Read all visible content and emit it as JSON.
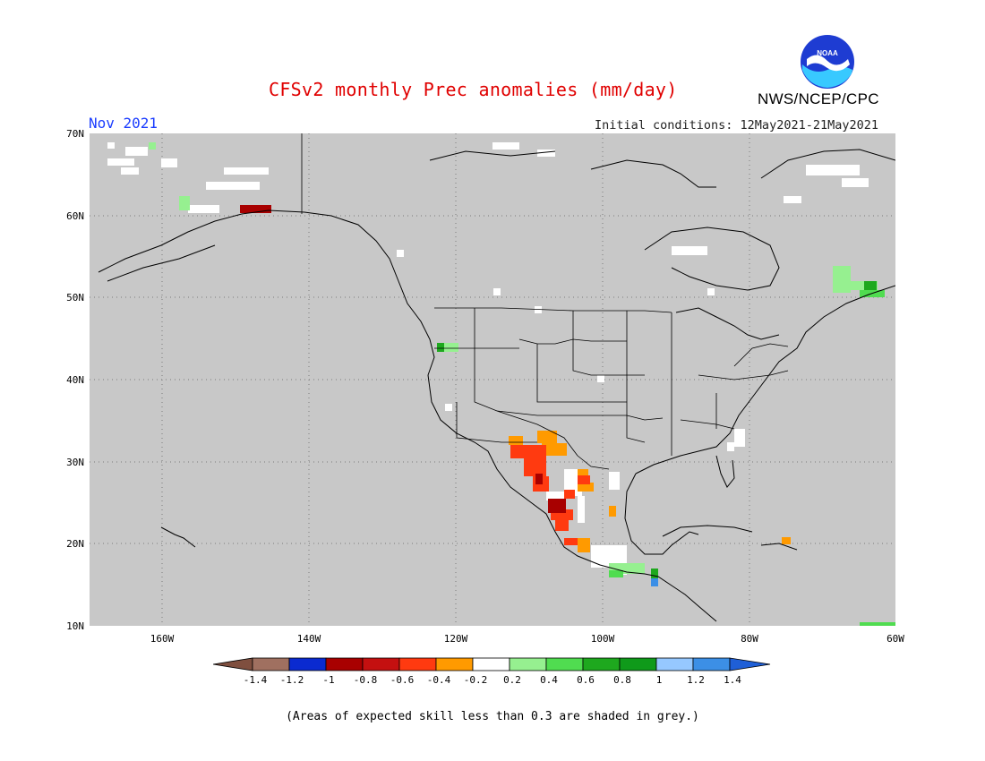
{
  "header": {
    "title": "CFSv2 monthly Prec anomalies (mm/day)",
    "month": "Nov 2021",
    "initial_conditions": "Initial conditions: 12May2021-21May2021",
    "org": "NWS/NCEP/CPC",
    "logo_text": "NOAA"
  },
  "map": {
    "lat_labels": [
      "70N",
      "60N",
      "50N",
      "40N",
      "30N",
      "20N",
      "10N"
    ],
    "lon_labels": [
      "160W",
      "140W",
      "120W",
      "100W",
      "80W",
      "60W"
    ],
    "background_color": "#c8c8c8"
  },
  "colorbar": {
    "labels": [
      "-1.4",
      "-1.2",
      "-1",
      "-0.8",
      "-0.6",
      "-0.4",
      "-0.2",
      "0.2",
      "0.4",
      "0.6",
      "0.8",
      "1",
      "1.2",
      "1.4"
    ],
    "colors": [
      "#7f4f3f",
      "#a07060",
      "#0a2ad0",
      "#a80000",
      "#c41010",
      "#ff3a10",
      "#ff9a00",
      "#ffffff",
      "#96f090",
      "#50dc50",
      "#1ea81e",
      "#0f9a1a",
      "#96c8ff",
      "#3c8fe6",
      "#1f5fd6"
    ]
  },
  "footnote": "(Areas of expected skill less than 0.3 are shaded in grey.)"
}
